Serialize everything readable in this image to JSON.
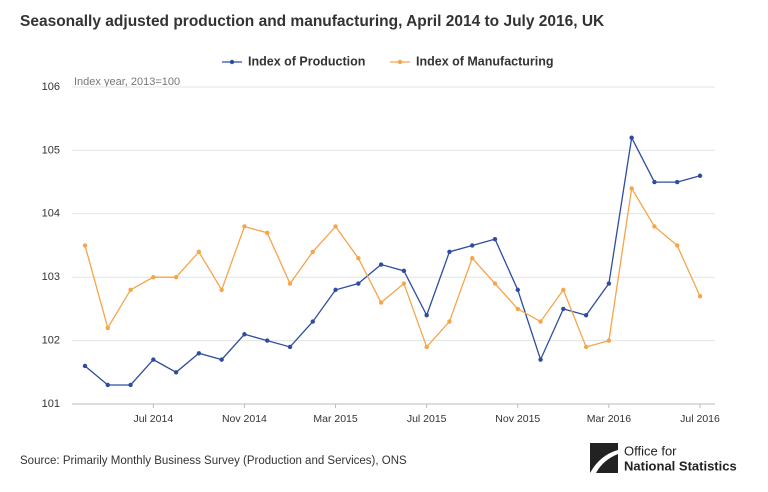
{
  "chart_data": {
    "type": "line",
    "title": "Seasonally adjusted production and manufacturing, April 2014 to July 2016, UK",
    "annotation": "Index year, 2013=100",
    "source": "Source: Primarily Monthly Business Survey (Production and Services), ONS",
    "categories": [
      null,
      null,
      null,
      "Jul 2014",
      null,
      null,
      null,
      "Nov 2014",
      null,
      null,
      null,
      "Mar 2015",
      null,
      null,
      null,
      "Jul 2015",
      null,
      null,
      null,
      "Nov 2015",
      null,
      null,
      null,
      "Mar 2016",
      null,
      null,
      null,
      "Jul 2016"
    ],
    "series": [
      {
        "name": "Index of Production",
        "color": "#2e4d9e",
        "values": [
          101.6,
          101.3,
          101.3,
          101.7,
          101.5,
          101.8,
          101.7,
          102.1,
          102.0,
          101.9,
          102.3,
          102.8,
          102.9,
          103.2,
          103.1,
          102.4,
          103.4,
          103.5,
          103.6,
          102.8,
          101.7,
          102.5,
          102.4,
          102.9,
          105.2,
          104.5,
          104.5,
          104.6
        ]
      },
      {
        "name": "Index of Manufacturing",
        "color": "#f5a54a",
        "values": [
          103.5,
          102.2,
          102.8,
          103.0,
          103.0,
          103.4,
          102.8,
          103.8,
          103.7,
          102.9,
          103.4,
          103.8,
          103.3,
          102.6,
          102.9,
          101.9,
          102.3,
          103.3,
          102.9,
          102.5,
          102.3,
          102.8,
          101.9,
          102.0,
          104.4,
          103.8,
          103.5,
          102.7
        ]
      }
    ],
    "ylim": [
      101,
      106
    ],
    "yticks": [
      101,
      102,
      103,
      104,
      105,
      106
    ],
    "grid": true
  },
  "logo": [
    "Office for",
    "National Statistics"
  ]
}
